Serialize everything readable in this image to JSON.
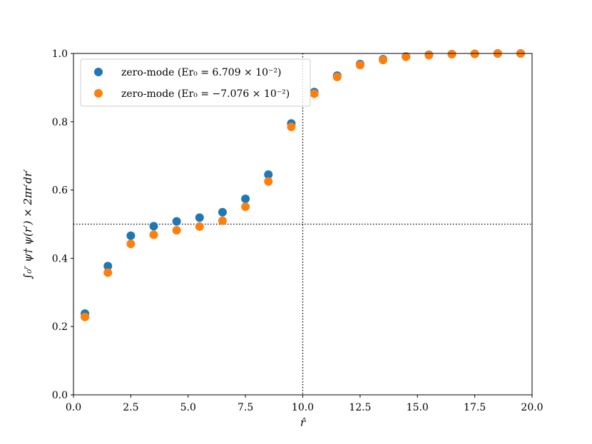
{
  "chart_data": {
    "type": "scatter",
    "xlabel": "r̂",
    "ylabel": "∫₀ʳ ψ† ψ(r′) × 2πr′dr′",
    "xlim": [
      0.0,
      20.0
    ],
    "ylim": [
      0.0,
      1.0
    ],
    "xticks": [
      "0.0",
      "2.5",
      "5.0",
      "7.5",
      "10.0",
      "12.5",
      "15.0",
      "17.5",
      "20.0"
    ],
    "yticks": [
      "0.0",
      "0.2",
      "0.4",
      "0.6",
      "0.8",
      "1.0"
    ],
    "grid": false,
    "legend_position": "upper-left",
    "reference_lines": {
      "vertical_x": 10.0,
      "horizontal_y": 0.5,
      "style": "dotted"
    },
    "x": [
      0.5,
      1.5,
      2.5,
      3.5,
      4.5,
      5.5,
      6.5,
      7.5,
      8.5,
      9.5,
      10.5,
      11.5,
      12.5,
      13.5,
      14.5,
      15.5,
      16.5,
      17.5,
      18.5,
      19.5
    ],
    "series": [
      {
        "name": "zero-mode (Er₀ = 6.709 × 10⁻²)",
        "color": "#1f77b4",
        "values": [
          0.238,
          0.377,
          0.466,
          0.494,
          0.508,
          0.519,
          0.535,
          0.574,
          0.645,
          0.795,
          0.887,
          0.935,
          0.969,
          0.983,
          0.991,
          0.996,
          0.998,
          0.999,
          1.0,
          1.0
        ]
      },
      {
        "name": "zero-mode (Er₀ = −7.076 × 10⁻²)",
        "color": "#ff7f0e",
        "values": [
          0.228,
          0.358,
          0.442,
          0.469,
          0.482,
          0.493,
          0.51,
          0.551,
          0.625,
          0.785,
          0.882,
          0.931,
          0.966,
          0.981,
          0.99,
          0.995,
          0.998,
          0.999,
          1.0,
          1.0
        ]
      }
    ]
  }
}
